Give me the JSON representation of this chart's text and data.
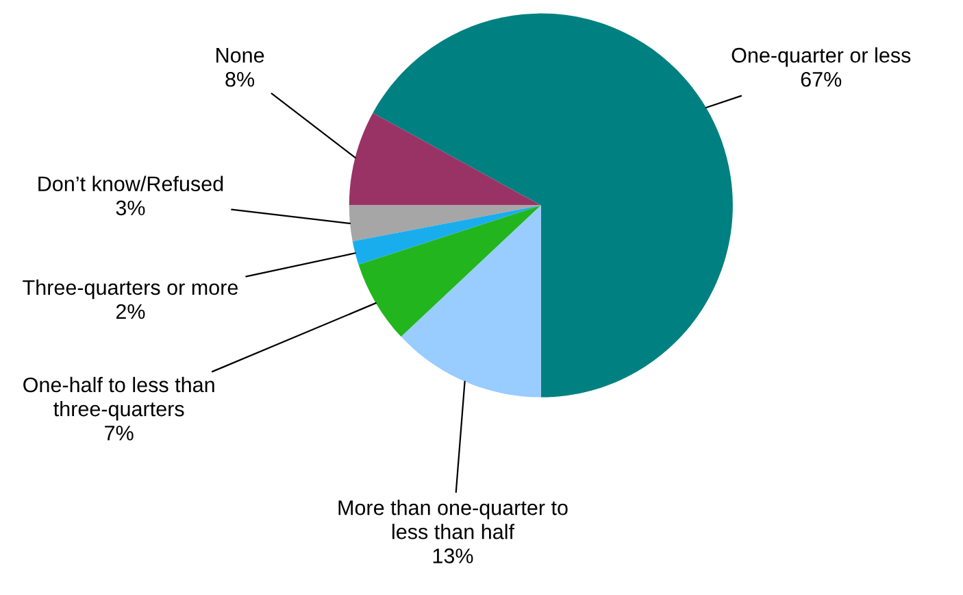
{
  "chart_data": {
    "type": "pie",
    "categories": [
      "One-quarter or less",
      "None",
      "Don’t know/Refused",
      "Three-quarters or more",
      "One-half to less than three-quarters",
      "More than one-quarter to less than half"
    ],
    "values": [
      67,
      8,
      3,
      2,
      7,
      13
    ],
    "value_labels": [
      "67%",
      "8%",
      "3%",
      "2%",
      "7%",
      "13%"
    ],
    "colors": [
      "#008080",
      "#993366",
      "#a6a6a6",
      "#1aadee",
      "#22b51e",
      "#99ccff"
    ]
  }
}
